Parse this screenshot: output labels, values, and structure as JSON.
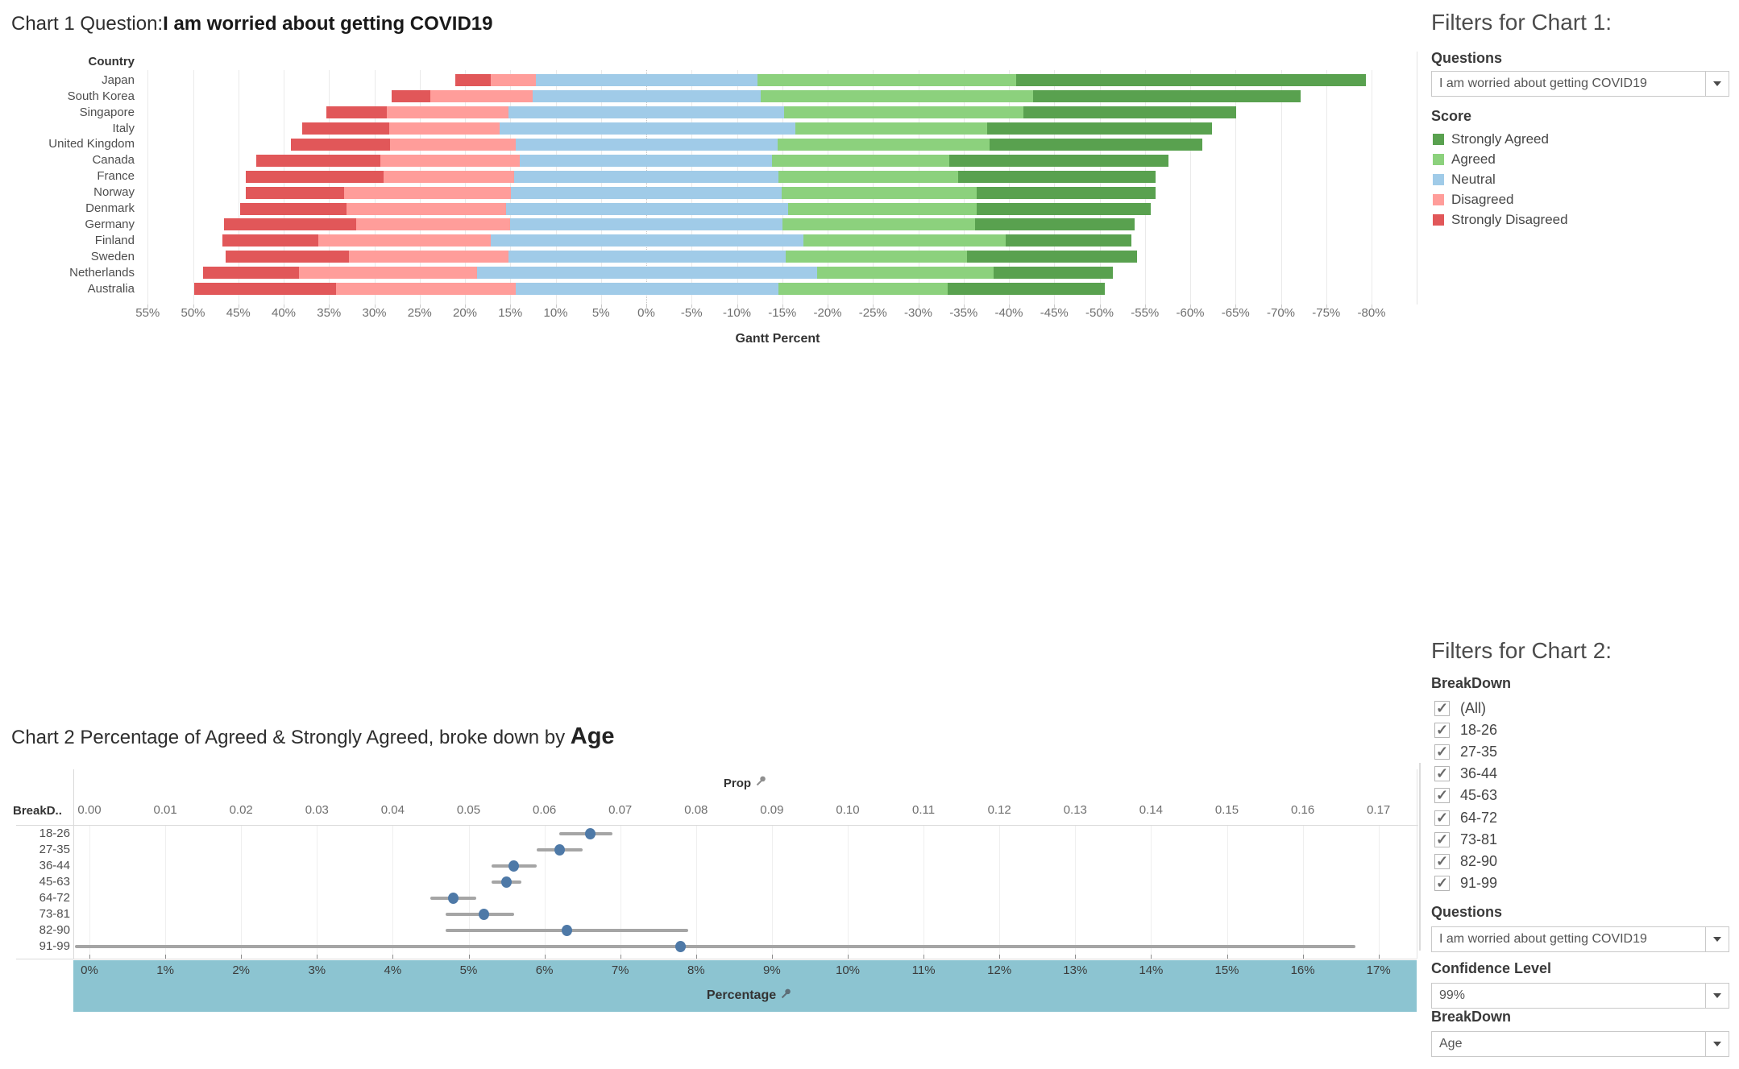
{
  "chart_data": [
    {
      "type": "bar",
      "subtype": "diverging-stacked-likert",
      "title_prefix": "Chart 1 Question:",
      "title_question": "I am worried about getting COVID19",
      "row_header": "Country",
      "xlabel": "Gantt Percent",
      "axis": {
        "start": 55,
        "end": -80,
        "step": -5,
        "format": "percent"
      },
      "scores": [
        "Strongly Disagreed",
        "Disagreed",
        "Neutral",
        "Agreed",
        "Strongly Agreed"
      ],
      "colors": [
        "#e15759",
        "#ff9d9a",
        "#a0cbe8",
        "#8cd17d",
        "#59a14f"
      ],
      "categories": [
        "Japan",
        "South Korea",
        "Singapore",
        "Italy",
        "United Kingdom",
        "Canada",
        "France",
        "Norway",
        "Denmark",
        "Germany",
        "Finland",
        "Sweden",
        "Netherlands",
        "Australia"
      ],
      "rows": [
        {
          "country": "Japan",
          "bounds": [
            21.1,
            17.2,
            12.2,
            -12.3,
            -40.8,
            -79.4
          ],
          "widths": [
            3.9,
            5.0,
            24.5,
            28.5,
            38.6
          ]
        },
        {
          "country": "South Korea",
          "bounds": [
            28.1,
            23.8,
            12.5,
            -12.6,
            -42.7,
            -72.2
          ],
          "widths": [
            4.3,
            11.3,
            25.1,
            30.1,
            29.5
          ]
        },
        {
          "country": "Singapore",
          "bounds": [
            35.3,
            28.6,
            15.2,
            -15.2,
            -41.6,
            -65.1
          ],
          "widths": [
            6.7,
            13.4,
            30.4,
            26.4,
            23.5
          ]
        },
        {
          "country": "Italy",
          "bounds": [
            38.0,
            28.4,
            16.2,
            -16.4,
            -37.6,
            -62.4
          ],
          "widths": [
            9.6,
            12.2,
            32.6,
            21.2,
            24.8
          ]
        },
        {
          "country": "United Kingdom",
          "bounds": [
            39.2,
            28.3,
            14.4,
            -14.5,
            -37.9,
            -61.3
          ],
          "widths": [
            10.9,
            13.9,
            28.9,
            23.4,
            23.4
          ]
        },
        {
          "country": "Canada",
          "bounds": [
            43.0,
            29.3,
            14.0,
            -13.9,
            -33.4,
            -57.6
          ],
          "widths": [
            13.7,
            15.3,
            27.9,
            19.5,
            24.2
          ]
        },
        {
          "country": "France",
          "bounds": [
            44.2,
            29.0,
            14.6,
            -14.6,
            -34.4,
            -56.2
          ],
          "widths": [
            15.2,
            14.4,
            29.2,
            19.8,
            21.8
          ]
        },
        {
          "country": "Norway",
          "bounds": [
            44.2,
            33.3,
            14.9,
            -14.9,
            -36.4,
            -56.2
          ],
          "widths": [
            10.9,
            18.4,
            29.8,
            21.5,
            19.8
          ]
        },
        {
          "country": "Denmark",
          "bounds": [
            44.8,
            33.1,
            15.5,
            -15.6,
            -36.4,
            -55.6
          ],
          "widths": [
            11.7,
            17.6,
            31.1,
            20.8,
            19.2
          ]
        },
        {
          "country": "Germany",
          "bounds": [
            46.6,
            32.0,
            15.0,
            -15.0,
            -36.3,
            -53.9
          ],
          "widths": [
            14.6,
            17.0,
            30.0,
            21.3,
            17.6
          ]
        },
        {
          "country": "Finland",
          "bounds": [
            46.8,
            36.2,
            17.2,
            -17.3,
            -39.6,
            -53.5
          ],
          "widths": [
            10.6,
            19.0,
            34.5,
            22.3,
            13.9
          ]
        },
        {
          "country": "Sweden",
          "bounds": [
            46.4,
            32.8,
            15.2,
            -15.4,
            -35.4,
            -54.1
          ],
          "widths": [
            13.6,
            17.6,
            30.6,
            20.0,
            18.7
          ]
        },
        {
          "country": "Netherlands",
          "bounds": [
            48.9,
            38.3,
            18.7,
            -18.8,
            -38.3,
            -51.5
          ],
          "widths": [
            10.6,
            19.6,
            37.5,
            19.5,
            13.2
          ]
        },
        {
          "country": "Australia",
          "bounds": [
            49.9,
            34.2,
            14.4,
            -14.6,
            -33.2,
            -50.6
          ],
          "widths": [
            15.7,
            19.8,
            29.0,
            18.6,
            17.4
          ]
        }
      ]
    },
    {
      "type": "scatter",
      "subtype": "dot-with-confidence-interval",
      "title_prefix": "Chart 2 Percentage of Agreed & Strongly Agreed, broke down by ",
      "title_bold": "Age",
      "row_header": "BreakD..",
      "top_axis": {
        "label": "Prop",
        "min": 0.0,
        "max": 0.17,
        "step": 0.01
      },
      "bottom_axis": {
        "label": "Percentage",
        "min": 0,
        "max": 17,
        "step": 1,
        "unit": "%"
      },
      "dot_color": "#4e79a7",
      "whisker_color": "#a5a5a5",
      "band_color": "#8cc4d1",
      "rows": [
        {
          "age": "18-26",
          "value": 0.066,
          "ci_low": 0.062,
          "ci_high": 0.069
        },
        {
          "age": "27-35",
          "value": 0.062,
          "ci_low": 0.059,
          "ci_high": 0.065
        },
        {
          "age": "36-44",
          "value": 0.056,
          "ci_low": 0.053,
          "ci_high": 0.059
        },
        {
          "age": "45-63",
          "value": 0.055,
          "ci_low": 0.053,
          "ci_high": 0.057
        },
        {
          "age": "64-72",
          "value": 0.048,
          "ci_low": 0.045,
          "ci_high": 0.051
        },
        {
          "age": "73-81",
          "value": 0.052,
          "ci_low": 0.047,
          "ci_high": 0.056
        },
        {
          "age": "82-90",
          "value": 0.063,
          "ci_low": 0.047,
          "ci_high": 0.079
        },
        {
          "age": "91-99",
          "value": 0.078,
          "ci_low": 0.0,
          "ci_high": 0.167,
          "clipped_low": true
        }
      ]
    }
  ],
  "filters1": {
    "title": "Filters for Chart 1:",
    "questions_label": "Questions",
    "questions_value": "I am worried about getting COVID19",
    "score_label": "Score",
    "legend": [
      {
        "label": "Strongly Agreed",
        "color": "#59a14f"
      },
      {
        "label": "Agreed",
        "color": "#8cd17d"
      },
      {
        "label": "Neutral",
        "color": "#a0cbe8"
      },
      {
        "label": "Disagreed",
        "color": "#ff9d9a"
      },
      {
        "label": "Strongly Disagreed",
        "color": "#e15759"
      }
    ]
  },
  "filters2": {
    "title": "Filters for Chart 2:",
    "breakdown_label": "BreakDown",
    "options": [
      {
        "label": "(All)",
        "checked": true
      },
      {
        "label": "18-26",
        "checked": true
      },
      {
        "label": "27-35",
        "checked": true
      },
      {
        "label": "36-44",
        "checked": true
      },
      {
        "label": "45-63",
        "checked": true
      },
      {
        "label": "64-72",
        "checked": true
      },
      {
        "label": "73-81",
        "checked": true
      },
      {
        "label": "82-90",
        "checked": true
      },
      {
        "label": "91-99",
        "checked": true
      }
    ],
    "questions_label": "Questions",
    "questions_value": "I am worried about getting COVID19",
    "confidence_label": "Confidence Level",
    "confidence_value": "99%",
    "breakdown2_label": "BreakDown",
    "breakdown2_value": "Age"
  }
}
